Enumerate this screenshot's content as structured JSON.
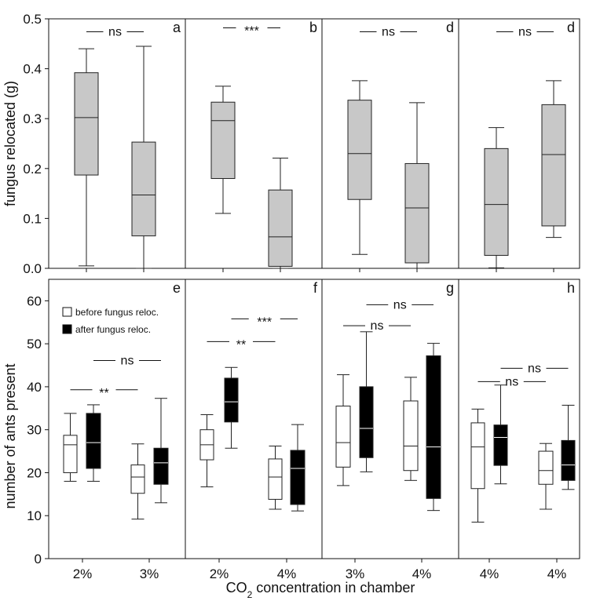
{
  "figure": {
    "xlabel_main": "CO",
    "xlabel_sub": "2",
    "xlabel_rest": " concentration in chamber",
    "top_ylabel": "fungus relocated (g)",
    "bottom_ylabel": "number of ants present",
    "legend": {
      "before": "before fungus reloc.",
      "after": "after fungus reloc."
    }
  },
  "colors": {
    "gray": "#c8c8c8",
    "black": "#000000",
    "white": "#ffffff",
    "line": "#222222"
  },
  "chart_data": [
    {
      "type": "boxplot",
      "title": "a",
      "ylim": [
        0,
        0.5
      ],
      "yticks": [
        "0.0",
        "0.1",
        "0.2",
        "0.3",
        "0.4",
        "0.5"
      ],
      "categories": [],
      "boxes": [
        {
          "fill": "gray",
          "min": 0.005,
          "q1": 0.187,
          "median": 0.302,
          "q3": 0.392,
          "max": 0.44
        },
        {
          "fill": "gray",
          "min": 0.0,
          "q1": 0.065,
          "median": 0.147,
          "q3": 0.253,
          "max": 0.445
        }
      ],
      "sig": [
        {
          "label": "ns",
          "y": 0.474,
          "from": 0,
          "to": 1
        }
      ]
    },
    {
      "type": "boxplot",
      "title": "b",
      "ylim": [
        0,
        0.5
      ],
      "categories": [],
      "boxes": [
        {
          "fill": "gray",
          "min": 0.11,
          "q1": 0.18,
          "median": 0.296,
          "q3": 0.333,
          "max": 0.365
        },
        {
          "fill": "gray",
          "min": 0.0,
          "q1": 0.004,
          "median": 0.063,
          "q3": 0.157,
          "max": 0.221
        }
      ],
      "sig": [
        {
          "label": "***",
          "y": 0.482,
          "from": 0,
          "to": 1
        }
      ]
    },
    {
      "type": "boxplot",
      "title": "d",
      "ylim": [
        0,
        0.5
      ],
      "categories": [],
      "boxes": [
        {
          "fill": "gray",
          "min": 0.028,
          "q1": 0.138,
          "median": 0.23,
          "q3": 0.337,
          "max": 0.376
        },
        {
          "fill": "gray",
          "min": 0.0,
          "q1": 0.011,
          "median": 0.121,
          "q3": 0.21,
          "max": 0.332
        }
      ],
      "sig": [
        {
          "label": "ns",
          "y": 0.474,
          "from": 0,
          "to": 1
        }
      ]
    },
    {
      "type": "boxplot",
      "title": "d",
      "ylim": [
        0,
        0.5
      ],
      "categories": [],
      "boxes": [
        {
          "fill": "gray",
          "min": 0.001,
          "q1": 0.026,
          "median": 0.128,
          "q3": 0.24,
          "max": 0.282
        },
        {
          "fill": "gray",
          "min": 0.062,
          "q1": 0.085,
          "median": 0.228,
          "q3": 0.328,
          "max": 0.376
        }
      ],
      "sig": [
        {
          "label": "ns",
          "y": 0.474,
          "from": 0,
          "to": 1
        }
      ]
    },
    {
      "type": "boxplot",
      "title": "e",
      "ylim": [
        0,
        65
      ],
      "yticks": [
        "0",
        "10",
        "20",
        "30",
        "40",
        "50",
        "60"
      ],
      "categories": [
        "2%",
        "3%"
      ],
      "boxes": [
        {
          "fill": "white",
          "group": 0,
          "min": 18,
          "q1": 20,
          "median": 26.5,
          "q3": 28.7,
          "max": 33.8
        },
        {
          "fill": "black",
          "group": 0,
          "min": 18,
          "q1": 21,
          "median": 27,
          "q3": 33.8,
          "max": 35.8
        },
        {
          "fill": "white",
          "group": 1,
          "min": 9.2,
          "q1": 15.2,
          "median": 19,
          "q3": 21.8,
          "max": 26.7
        },
        {
          "fill": "black",
          "group": 1,
          "min": 13,
          "q1": 17.3,
          "median": 22.3,
          "q3": 25.7,
          "max": 37.3
        }
      ],
      "sig": [
        {
          "label": "ns",
          "y": 46.1,
          "from": 1,
          "to": 3
        },
        {
          "label": "**",
          "y": 39.3,
          "from": 0,
          "to": 2
        }
      ]
    },
    {
      "type": "boxplot",
      "title": "f",
      "ylim": [
        0,
        65
      ],
      "categories": [
        "2%",
        "4%"
      ],
      "boxes": [
        {
          "fill": "white",
          "group": 0,
          "min": 16.7,
          "q1": 23,
          "median": 26.5,
          "q3": 30,
          "max": 33.5
        },
        {
          "fill": "black",
          "group": 0,
          "min": 25.7,
          "q1": 31.8,
          "median": 36.5,
          "q3": 42,
          "max": 44.5
        },
        {
          "fill": "white",
          "group": 1,
          "min": 11.5,
          "q1": 13.8,
          "median": 19,
          "q3": 23.2,
          "max": 26.2
        },
        {
          "fill": "black",
          "group": 1,
          "min": 11.1,
          "q1": 12.6,
          "median": 21,
          "q3": 25.2,
          "max": 31.2
        }
      ],
      "sig": [
        {
          "label": "***",
          "y": 55.8,
          "from": 1,
          "to": 3
        },
        {
          "label": "**",
          "y": 50.5,
          "from": 0,
          "to": 2
        }
      ]
    },
    {
      "type": "boxplot",
      "title": "g",
      "ylim": [
        0,
        65
      ],
      "categories": [
        "3%",
        "4%"
      ],
      "boxes": [
        {
          "fill": "white",
          "group": 0,
          "min": 17,
          "q1": 21.3,
          "median": 27,
          "q3": 35.5,
          "max": 42.8
        },
        {
          "fill": "black",
          "group": 0,
          "min": 20.2,
          "q1": 23.5,
          "median": 30.3,
          "q3": 40,
          "max": 52.8
        },
        {
          "fill": "white",
          "group": 1,
          "min": 18.2,
          "q1": 20.5,
          "median": 26.2,
          "q3": 36.7,
          "max": 42.2
        },
        {
          "fill": "black",
          "group": 1,
          "min": 11.2,
          "q1": 14,
          "median": 26,
          "q3": 47.2,
          "max": 50.1
        }
      ],
      "sig": [
        {
          "label": "ns",
          "y": 59.1,
          "from": 1,
          "to": 3
        },
        {
          "label": "ns",
          "y": 54.2,
          "from": 0,
          "to": 2
        }
      ]
    },
    {
      "type": "boxplot",
      "title": "h",
      "ylim": [
        0,
        65
      ],
      "categories": [
        "4%",
        "4%"
      ],
      "boxes": [
        {
          "fill": "white",
          "group": 0,
          "min": 8.5,
          "q1": 16.3,
          "median": 26,
          "q3": 31.6,
          "max": 34.8
        },
        {
          "fill": "black",
          "group": 0,
          "min": 17.4,
          "q1": 21.7,
          "median": 28.2,
          "q3": 31.1,
          "max": 40.4
        },
        {
          "fill": "white",
          "group": 1,
          "min": 11.5,
          "q1": 17.3,
          "median": 20.5,
          "q3": 25,
          "max": 26.8
        },
        {
          "fill": "black",
          "group": 1,
          "min": 16.1,
          "q1": 18.2,
          "median": 21.8,
          "q3": 27.5,
          "max": 35.7
        }
      ],
      "sig": [
        {
          "label": "ns",
          "y": 44.3,
          "from": 1,
          "to": 3
        },
        {
          "label": "ns",
          "y": 41.2,
          "from": 0,
          "to": 2
        }
      ]
    }
  ]
}
